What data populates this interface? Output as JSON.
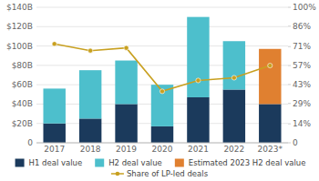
{
  "chart_data": {
    "type": "bar",
    "stacked": true,
    "categories": [
      "2017",
      "2018",
      "2019",
      "2020",
      "2021",
      "2022",
      "2023*"
    ],
    "series": [
      {
        "name": "H1 deal value",
        "color": "#1b3a5c",
        "values": [
          20,
          25,
          40,
          17,
          47,
          55,
          40
        ]
      },
      {
        "name": "H2 deal value",
        "color": "#4dbfcc",
        "values": [
          36,
          50,
          45,
          43,
          83,
          50,
          0
        ]
      },
      {
        "name": "Estimated 2023 H2 deal value",
        "color": "#e08030",
        "values": [
          0,
          0,
          0,
          0,
          0,
          0,
          57
        ]
      },
      {
        "name": "Share of LP-led deals",
        "type": "line",
        "axis": "y2",
        "color": "#c8a020",
        "marker": "circle",
        "values": [
          73,
          68,
          70,
          38,
          46,
          48,
          57
        ]
      }
    ],
    "ylim": [
      0,
      140
    ],
    "yticks": [
      0,
      {
        "value": 20,
        "label": "$20B"
      },
      {
        "value": 40,
        "label": "$40B"
      },
      {
        "value": 60,
        "label": "$60B"
      },
      {
        "value": 80,
        "label": "$80B"
      },
      {
        "value": 100,
        "label": "$100B"
      },
      {
        "value": 120,
        "label": "$120B"
      },
      {
        "value": 140,
        "label": "$140B"
      }
    ],
    "y2lim": [
      0,
      100
    ],
    "y2ticks": [
      0,
      {
        "value": 14,
        "label": "14%"
      },
      {
        "value": 29,
        "label": "29%"
      },
      {
        "value": 43,
        "label": "43%"
      },
      {
        "value": 57,
        "label": "57%"
      },
      {
        "value": 71,
        "label": "71%"
      },
      {
        "value": 86,
        "label": "86%"
      },
      {
        "value": 100,
        "label": "100%"
      }
    ],
    "grid": true,
    "legend": "bottom"
  }
}
